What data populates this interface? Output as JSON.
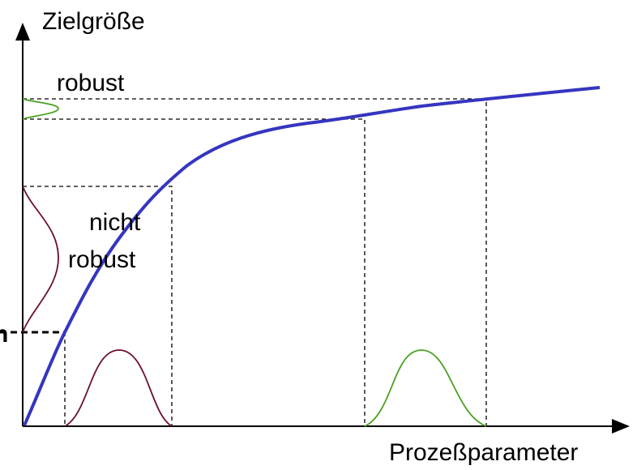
{
  "axes": {
    "y_label": "Zielgröße",
    "x_label": "Prozeßparameter"
  },
  "labels": {
    "robust": "robust",
    "not_robust": [
      "nicht",
      "robust"
    ],
    "edge": "n"
  }
}
